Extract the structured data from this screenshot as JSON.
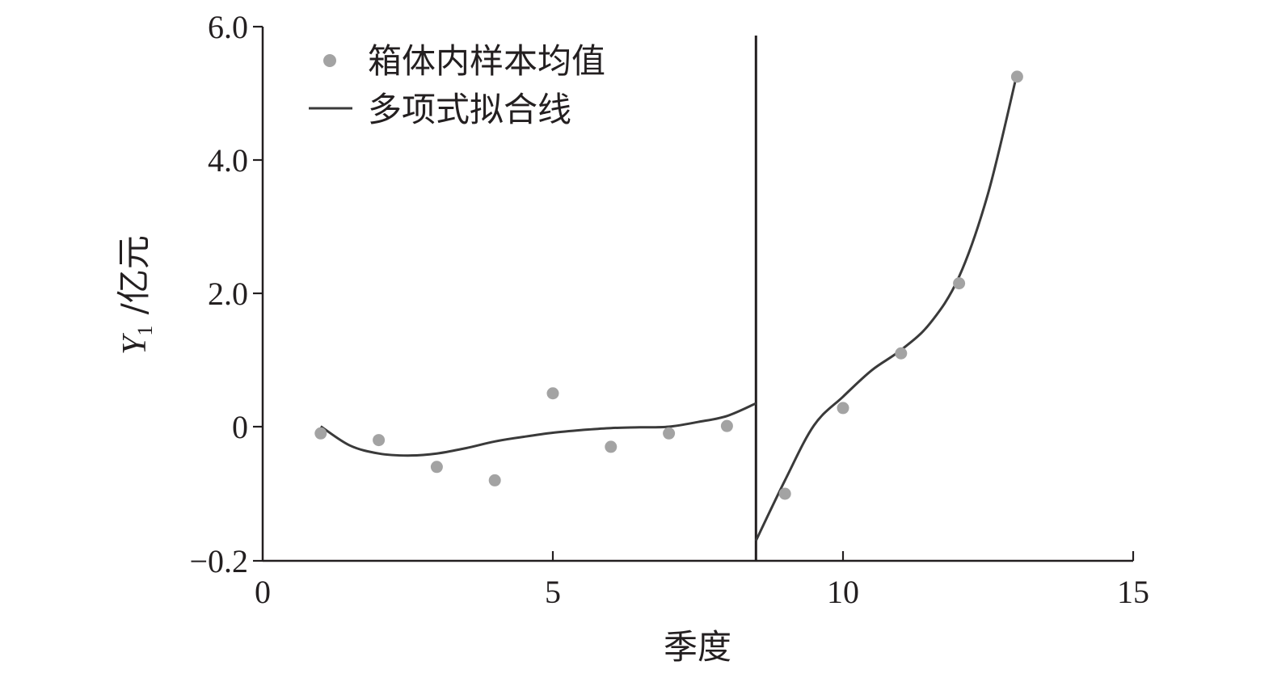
{
  "chart_data": {
    "type": "scatter",
    "xlabel": "季度",
    "ylabel_main": "Y",
    "ylabel_sub": "1",
    "ylabel_unit": " /亿元",
    "x_ticks": [
      "0",
      "5",
      "10",
      "15"
    ],
    "y_ticks": [
      "−0.2",
      "0",
      "2.0",
      "4.0",
      "6.0"
    ],
    "xlim": [
      0,
      15
    ],
    "y_axis_note": "broken scale: -0.2 to 0 spans 0.2, 0 to 6.0 spans 6.0",
    "legend_position": "top-left",
    "series": [
      {
        "name": "箱体内样本均值",
        "kind": "points",
        "color": "#a3a3a3",
        "x": [
          1,
          2,
          3,
          4,
          5,
          6,
          7,
          8,
          9,
          10,
          11,
          12,
          13
        ],
        "y": [
          -0.01,
          -0.02,
          -0.06,
          -0.08,
          0.5,
          -0.03,
          -0.01,
          0.01,
          -0.1,
          0.28,
          1.1,
          2.15,
          5.25
        ]
      },
      {
        "name": "多项式拟合线",
        "kind": "line",
        "color": "#3a3a3a",
        "segments": [
          {
            "x": [
              1.0,
              1.5,
              2.0,
              2.5,
              3.0,
              3.5,
              4.0,
              4.5,
              5.0,
              5.5,
              6.0,
              6.5,
              7.0,
              7.5,
              8.0,
              8.5
            ],
            "y": [
              0.005,
              -0.028,
              -0.04,
              -0.043,
              -0.04,
              -0.032,
              -0.022,
              -0.015,
              -0.009,
              -0.005,
              -0.002,
              -0.001,
              0.0,
              0.07,
              0.16,
              0.35
            ]
          },
          {
            "x": [
              8.5,
              9.0,
              9.5,
              10.0,
              10.5,
              11.0,
              11.5,
              12.0,
              12.5,
              13.0
            ],
            "y": [
              -0.17,
              -0.08,
              0.02,
              0.45,
              0.85,
              1.15,
              1.55,
              2.25,
              3.5,
              5.3
            ]
          }
        ]
      }
    ],
    "breakpoint_x": 8.5
  }
}
